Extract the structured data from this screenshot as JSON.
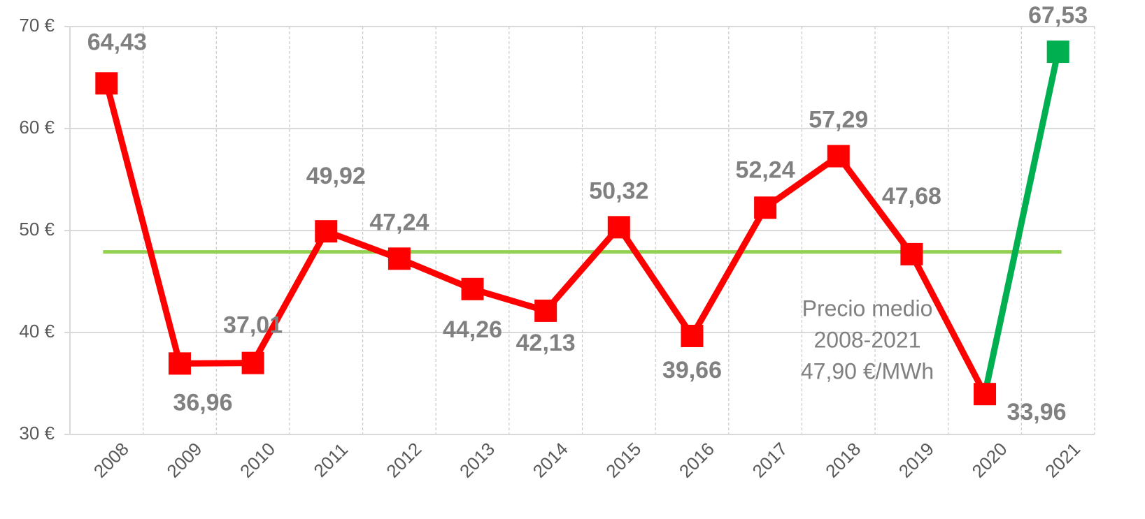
{
  "chart_data": {
    "type": "line",
    "categories": [
      "2008",
      "2009",
      "2010",
      "2011",
      "2012",
      "2013",
      "2014",
      "2015",
      "2016",
      "2017",
      "2018",
      "2019",
      "2020",
      "2021"
    ],
    "values": [
      64.43,
      36.96,
      37.01,
      49.92,
      47.24,
      44.26,
      42.13,
      50.32,
      39.66,
      52.24,
      57.29,
      47.68,
      33.96,
      67.53
    ],
    "value_labels": [
      "64,43",
      "36,96",
      "37,01",
      "49,92",
      "47,24",
      "44,26",
      "42,13",
      "50,32",
      "39,66",
      "52,24",
      "57,29",
      "47,68",
      "33,96",
      "67,53"
    ],
    "point_colors": [
      "#ff0000",
      "#ff0000",
      "#ff0000",
      "#ff0000",
      "#ff0000",
      "#ff0000",
      "#ff0000",
      "#ff0000",
      "#ff0000",
      "#ff0000",
      "#ff0000",
      "#ff0000",
      "#ff0000",
      "#00b050"
    ],
    "ylim": [
      30,
      70
    ],
    "yticks": [
      {
        "value": 30,
        "label": "30 €"
      },
      {
        "value": 40,
        "label": "40 €"
      },
      {
        "value": 50,
        "label": "50 €"
      },
      {
        "value": 60,
        "label": "60 €"
      },
      {
        "value": 70,
        "label": "70 €"
      }
    ],
    "grid": true,
    "reference_line": {
      "value": 47.9,
      "color": "#92d050"
    },
    "annotation": [
      "Precio medio",
      "2008-2021",
      "47,90 €/MWh"
    ]
  }
}
